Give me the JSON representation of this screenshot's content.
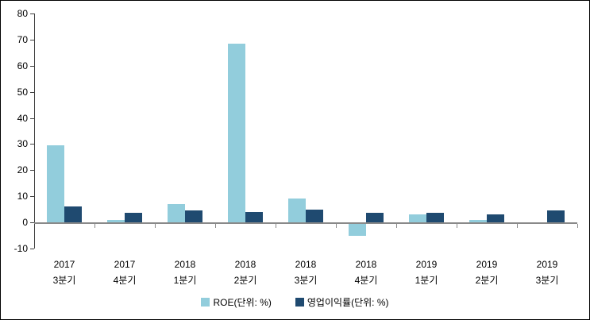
{
  "chart_data": {
    "type": "bar",
    "categories": [
      {
        "year": "2017",
        "quarter": "3분기"
      },
      {
        "year": "2017",
        "quarter": "4분기"
      },
      {
        "year": "2018",
        "quarter": "1분기"
      },
      {
        "year": "2018",
        "quarter": "2분기"
      },
      {
        "year": "2018",
        "quarter": "3분기"
      },
      {
        "year": "2018",
        "quarter": "4분기"
      },
      {
        "year": "2019",
        "quarter": "1분기"
      },
      {
        "year": "2019",
        "quarter": "2분기"
      },
      {
        "year": "2019",
        "quarter": "3분기"
      }
    ],
    "series": [
      {
        "name": "ROE(단위: %)",
        "color": "#92CDDC",
        "values": [
          29.5,
          1,
          7,
          68.5,
          9,
          -4.5,
          3,
          1,
          0
        ]
      },
      {
        "name": "영업이익률(단위: %)",
        "color": "#1F4A70",
        "values": [
          6,
          3.5,
          4.5,
          4,
          5,
          3.5,
          3.5,
          3,
          4.5
        ]
      }
    ],
    "title": "",
    "xlabel": "",
    "ylabel": "",
    "ylim": [
      -10,
      80
    ],
    "ytick_step": 10,
    "grid": false,
    "legend_position": "bottom-center",
    "colors": {
      "roe_bar": "#92CDDC",
      "op_margin_bar": "#1F4A70",
      "y_axis_line": "#404040",
      "zero_axis_line": "#898989",
      "text": "#000000",
      "background": "#FFFFFF"
    }
  }
}
